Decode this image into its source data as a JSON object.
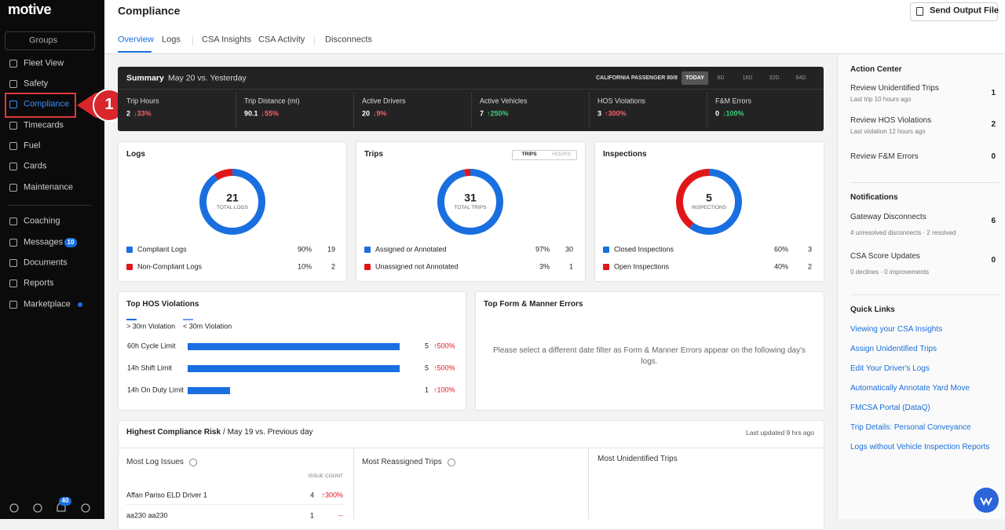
{
  "sidebar": {
    "logo": "motive",
    "groups": "Groups",
    "nav": [
      {
        "label": "Fleet View"
      },
      {
        "label": "Safety"
      },
      {
        "label": "Compliance"
      },
      {
        "label": "Timecards"
      },
      {
        "label": "Fuel"
      },
      {
        "label": "Cards"
      },
      {
        "label": "Maintenance"
      },
      {
        "label": "Coaching"
      },
      {
        "label": "Messages",
        "badge": 10
      },
      {
        "label": "Documents"
      },
      {
        "label": "Reports"
      },
      {
        "label": "Marketplace"
      }
    ],
    "alert_badge": 40
  },
  "callout": {
    "label": "1"
  },
  "header": {
    "title": "Compliance",
    "button": "Send Output File",
    "tabs": [
      "Overview",
      "Logs",
      "CSA Insights",
      "CSA Activity",
      "Disconnects"
    ]
  },
  "summary": {
    "title": "Summary",
    "date": "May 20 vs. Yesterday",
    "filter": "CALIFORNIA PASSENGER 80/8",
    "ranges": [
      "TODAY",
      "8D",
      "16D",
      "32D",
      "64D"
    ],
    "metrics": [
      {
        "label": "Trip Hours",
        "value": 2,
        "change": "↓33%",
        "color": "#f0626a"
      },
      {
        "label": "Trip Distance (mi)",
        "value": 90.1,
        "change": "↓55%",
        "color": "#f0626a"
      },
      {
        "label": "Active Drivers",
        "value": 20,
        "change": "↓9%",
        "color": "#f0626a"
      },
      {
        "label": "Active Vehicles",
        "value": 7,
        "change": "↑250%",
        "color": "#3ecf7a"
      },
      {
        "label": "HOS Violations",
        "value": 3,
        "change": "↑300%",
        "color": "#f0626a"
      },
      {
        "label": "F&M Errors",
        "value": 0,
        "change": "↓100%",
        "color": "#3ecf7a"
      }
    ]
  },
  "cards": [
    {
      "title": "Logs",
      "total": 21,
      "total_label": "TOTAL LOGS",
      "legend": [
        {
          "label": "Compliant Logs",
          "percent": "90%",
          "count": 19,
          "color": "#1a6fe0"
        },
        {
          "label": "Non-Compliant Logs",
          "percent": "10%",
          "count": 2,
          "color": "#e0161b"
        }
      ]
    },
    {
      "title": "Trips",
      "toggle": [
        "TRIPS",
        "HOURS"
      ],
      "total": 31,
      "total_label": "TOTAL TRIPS",
      "legend": [
        {
          "label": "Assigned or Annotated",
          "percent": "97%",
          "count": 30,
          "color": "#1a6fe0"
        },
        {
          "label": "Unassigned not Annotated",
          "percent": "3%",
          "count": 1,
          "color": "#e0161b"
        }
      ]
    },
    {
      "title": "Inspections",
      "total": 5,
      "total_label": "INSPECTIONS",
      "legend": [
        {
          "label": "Closed Inspections",
          "percent": "60%",
          "count": 3,
          "color": "#1a6fe0"
        },
        {
          "label": "Open Inspections",
          "percent": "40%",
          "count": 2,
          "color": "#e0161b"
        }
      ]
    }
  ],
  "hos": {
    "title": "Top HOS Violations",
    "legend": [
      "> 30m Violation",
      "< 30m Violation"
    ],
    "color": "#1a6fe0",
    "rows": [
      {
        "label": "60h Cycle Limit",
        "value": 5,
        "change": "↑500%"
      },
      {
        "label": "14h Shift Limit",
        "value": 5,
        "change": "↑500%"
      },
      {
        "label": "14h On Duty Limit",
        "value": 1,
        "change": "↑100%"
      }
    ]
  },
  "fm": {
    "title": "Top Form & Manner Errors",
    "message": "Please select a different date filter as Form & Manner Errors appear on the following day's logs."
  },
  "risk": {
    "title": "Highest Compliance Risk",
    "subtitle": "/ May 19 vs. Previous day",
    "updated": "Last updated 9 hrs ago",
    "columns": [
      {
        "title": "Most Log Issues",
        "count_header": "ISSUE COUNT",
        "rows": [
          {
            "name": "Affan Pariso ELD Driver 1",
            "count": 4,
            "change": "↑300%"
          },
          {
            "name": "aa230 aa230",
            "count": 1,
            "change": "--"
          }
        ]
      },
      {
        "title": "Most Reassigned Trips"
      },
      {
        "title": "Most Unidentified Trips"
      }
    ]
  },
  "action_center": {
    "title": "Action Center",
    "items": [
      {
        "label": "Review Unidentified Trips",
        "sub": "Last trip 10 hours ago",
        "count": 1
      },
      {
        "label": "Review HOS Violations",
        "sub": "Last violation 12 hours ago",
        "count": 2
      },
      {
        "label": "Review F&M Errors",
        "count": 0
      }
    ]
  },
  "notifications": {
    "title": "Notifications",
    "items": [
      {
        "label": "Gateway Disconnects",
        "sub": "4 unresolved disconnects · 2 resolved",
        "count": 6
      },
      {
        "label": "CSA Score Updates",
        "sub": "0 declines · 0 improvements",
        "count": 0
      }
    ]
  },
  "quick_links": {
    "title": "Quick Links",
    "links": [
      "Viewing your CSA Insights",
      "Assign Unidentified Trips",
      "Edit Your Driver's Logs",
      "Automatically Annotate Yard Move",
      "FMCSA Portal (DataQ)",
      "Trip Details: Personal Conveyance",
      "Logs without Vehicle Inspection Reports"
    ]
  }
}
